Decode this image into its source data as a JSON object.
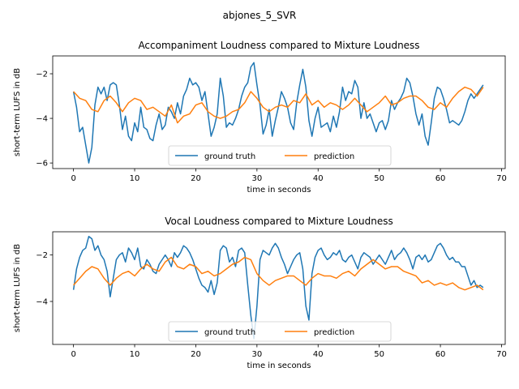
{
  "figure": {
    "suptitle": "abjones_5_SVR"
  },
  "chart_data": [
    {
      "type": "line",
      "title": "Accompaniment Loudness compared to Mixture Loudness",
      "xlabel": "time in seconds",
      "ylabel": "short-term LUFS in dB",
      "xlim": [
        -3.4,
        70.6
      ],
      "ylim": [
        -6.25,
        -1.2
      ],
      "xticks": [
        0,
        10,
        20,
        30,
        40,
        50,
        60,
        70
      ],
      "yticks": [
        -6,
        -4,
        -2
      ],
      "legend": {
        "placement": "lower-center",
        "entries": [
          "ground truth",
          "prediction"
        ]
      },
      "colors": {
        "ground truth": "#1f77b4",
        "prediction": "#ff7f0e"
      },
      "series": [
        {
          "name": "ground truth",
          "x": [
            0,
            0.5,
            1,
            1.5,
            2,
            2.5,
            3,
            3.5,
            4,
            4.5,
            5,
            5.5,
            6,
            6.5,
            7,
            7.5,
            8,
            8.5,
            9,
            9.5,
            10,
            10.5,
            11,
            11.5,
            12,
            12.5,
            13,
            13.5,
            14,
            14.5,
            15,
            15.5,
            16,
            16.5,
            17,
            17.5,
            18,
            18.5,
            19,
            19.5,
            20,
            20.5,
            21,
            21.5,
            22,
            22.5,
            23,
            23.5,
            24,
            24.5,
            25,
            25.5,
            26,
            26.5,
            27,
            27.5,
            28,
            28.5,
            29,
            29.5,
            30,
            30.5,
            31,
            31.5,
            32,
            32.5,
            33,
            33.5,
            34,
            34.5,
            35,
            35.5,
            36,
            36.5,
            37,
            37.5,
            38,
            38.5,
            39,
            39.5,
            40,
            40.5,
            41,
            41.5,
            42,
            42.5,
            43,
            43.5,
            44,
            44.5,
            45,
            45.5,
            46,
            46.5,
            47,
            47.5,
            48,
            48.5,
            49,
            49.5,
            50,
            50.5,
            51,
            51.5,
            52,
            52.5,
            53,
            53.5,
            54,
            54.5,
            55,
            55.5,
            56,
            56.5,
            57,
            57.5,
            58,
            58.5,
            59,
            59.5,
            60,
            60.5,
            61,
            61.5,
            62,
            62.5,
            63,
            63.5,
            64,
            64.5,
            65,
            65.5,
            66,
            66.5,
            67
          ],
          "y": [
            -2.8,
            -3.5,
            -4.6,
            -4.4,
            -5.2,
            -6.0,
            -5.3,
            -3.4,
            -2.6,
            -2.9,
            -2.6,
            -3.2,
            -2.5,
            -2.4,
            -2.5,
            -3.4,
            -4.5,
            -3.9,
            -4.8,
            -5.0,
            -4.2,
            -4.6,
            -3.5,
            -4.4,
            -4.5,
            -4.9,
            -5.0,
            -4.3,
            -3.8,
            -4.5,
            -4.3,
            -3.5,
            -3.7,
            -4.0,
            -3.3,
            -3.8,
            -3.0,
            -2.7,
            -2.2,
            -2.5,
            -2.4,
            -2.6,
            -3.2,
            -2.8,
            -3.8,
            -4.8,
            -4.4,
            -3.8,
            -2.2,
            -3.0,
            -4.4,
            -4.2,
            -4.3,
            -4.0,
            -3.6,
            -3.0,
            -2.6,
            -2.4,
            -1.7,
            -1.5,
            -2.5,
            -3.4,
            -4.7,
            -4.3,
            -3.6,
            -4.8,
            -4.1,
            -3.5,
            -2.8,
            -3.1,
            -3.5,
            -4.2,
            -4.5,
            -3.3,
            -2.5,
            -1.8,
            -2.6,
            -4.1,
            -4.8,
            -4.0,
            -3.5,
            -4.4,
            -4.3,
            -4.2,
            -4.6,
            -3.9,
            -4.4,
            -3.7,
            -2.6,
            -3.2,
            -2.8,
            -2.9,
            -2.3,
            -2.6,
            -4.0,
            -3.3,
            -4.0,
            -3.8,
            -4.2,
            -4.6,
            -4.2,
            -4.1,
            -4.5,
            -4.1,
            -3.2,
            -3.6,
            -3.3,
            -3.1,
            -2.8,
            -2.2,
            -2.4,
            -3.0,
            -3.8,
            -4.3,
            -3.8,
            -4.8,
            -5.2,
            -4.2,
            -3.1,
            -2.6,
            -2.7,
            -3.1,
            -3.6,
            -4.2,
            -4.1,
            -4.2,
            -4.3,
            -4.1,
            -3.7,
            -3.2,
            -2.9,
            -3.1,
            -2.9,
            -2.7,
            -2.5
          ]
        },
        {
          "name": "prediction",
          "x": [
            0,
            1,
            2,
            3,
            4,
            5,
            6,
            7,
            8,
            9,
            10,
            11,
            12,
            13,
            14,
            15,
            16,
            17,
            18,
            19,
            20,
            21,
            22,
            23,
            24,
            25,
            26,
            27,
            28,
            29,
            30,
            31,
            32,
            33,
            34,
            35,
            36,
            37,
            38,
            39,
            40,
            41,
            42,
            43,
            44,
            45,
            46,
            47,
            48,
            49,
            50,
            51,
            52,
            53,
            54,
            55,
            56,
            57,
            58,
            59,
            60,
            61,
            62,
            63,
            64,
            65,
            66,
            67
          ],
          "y": [
            -2.8,
            -3.1,
            -3.2,
            -3.6,
            -3.7,
            -3.2,
            -3.0,
            -3.3,
            -3.7,
            -3.3,
            -3.1,
            -3.2,
            -3.6,
            -3.5,
            -3.7,
            -3.9,
            -3.4,
            -4.2,
            -3.9,
            -3.8,
            -3.4,
            -3.3,
            -3.7,
            -3.9,
            -4.0,
            -3.9,
            -3.7,
            -3.6,
            -3.3,
            -2.8,
            -3.1,
            -3.5,
            -3.7,
            -3.5,
            -3.4,
            -3.5,
            -3.2,
            -3.3,
            -2.9,
            -3.4,
            -3.2,
            -3.5,
            -3.3,
            -3.4,
            -3.6,
            -3.4,
            -3.1,
            -3.4,
            -3.7,
            -3.5,
            -3.3,
            -3.0,
            -3.4,
            -3.3,
            -3.1,
            -3.0,
            -3.0,
            -3.2,
            -3.5,
            -3.6,
            -3.3,
            -3.5,
            -3.1,
            -2.8,
            -2.6,
            -2.7,
            -3.0,
            -2.6
          ]
        }
      ]
    },
    {
      "type": "line",
      "title": "Vocal Loudness compared to Mixture Loudness",
      "xlabel": "time in seconds",
      "ylabel": "short-term LUFS in dB",
      "xlim": [
        -3.4,
        70.6
      ],
      "ylim": [
        -5.85,
        -1.0
      ],
      "xticks": [
        0,
        10,
        20,
        30,
        40,
        50,
        60,
        70
      ],
      "yticks": [
        -4,
        -2
      ],
      "legend": {
        "placement": "lower-center",
        "entries": [
          "ground truth",
          "prediction"
        ]
      },
      "colors": {
        "ground truth": "#1f77b4",
        "prediction": "#ff7f0e"
      },
      "series": [
        {
          "name": "ground truth",
          "x": [
            0,
            0.5,
            1,
            1.5,
            2,
            2.5,
            3,
            3.5,
            4,
            4.5,
            5,
            5.5,
            6,
            6.5,
            7,
            7.5,
            8,
            8.5,
            9,
            9.5,
            10,
            10.5,
            11,
            11.5,
            12,
            12.5,
            13,
            13.5,
            14,
            14.5,
            15,
            15.5,
            16,
            16.5,
            17,
            17.5,
            18,
            18.5,
            19,
            19.5,
            20,
            20.5,
            21,
            21.5,
            22,
            22.5,
            23,
            23.5,
            24,
            24.5,
            25,
            25.5,
            26,
            26.5,
            27,
            27.5,
            28,
            28.5,
            29,
            29.5,
            30,
            30.5,
            31,
            31.5,
            32,
            32.5,
            33,
            33.5,
            34,
            34.5,
            35,
            35.5,
            36,
            36.5,
            37,
            37.5,
            38,
            38.5,
            39,
            39.5,
            40,
            40.5,
            41,
            41.5,
            42,
            42.5,
            43,
            43.5,
            44,
            44.5,
            45,
            45.5,
            46,
            46.5,
            47,
            47.5,
            48,
            48.5,
            49,
            49.5,
            50,
            50.5,
            51,
            51.5,
            52,
            52.5,
            53,
            53.5,
            54,
            54.5,
            55,
            55.5,
            56,
            56.5,
            57,
            57.5,
            58,
            58.5,
            59,
            59.5,
            60,
            60.5,
            61,
            61.5,
            62,
            62.5,
            63,
            63.5,
            64,
            64.5,
            65,
            65.5,
            66,
            66.5,
            67
          ],
          "y": [
            -3.5,
            -2.6,
            -2.1,
            -1.8,
            -1.7,
            -1.2,
            -1.3,
            -1.8,
            -1.6,
            -2.0,
            -2.2,
            -2.7,
            -3.8,
            -3.0,
            -2.2,
            -2.0,
            -1.9,
            -2.3,
            -1.7,
            -1.9,
            -2.2,
            -1.7,
            -2.5,
            -2.6,
            -2.2,
            -2.4,
            -2.7,
            -2.8,
            -2.4,
            -2.2,
            -2.0,
            -2.2,
            -2.5,
            -1.9,
            -2.1,
            -1.9,
            -1.6,
            -1.7,
            -1.9,
            -2.2,
            -2.6,
            -3.0,
            -3.3,
            -3.4,
            -3.6,
            -3.1,
            -3.7,
            -3.2,
            -1.8,
            -1.6,
            -1.7,
            -2.3,
            -2.1,
            -2.5,
            -1.8,
            -1.7,
            -1.9,
            -3.3,
            -4.6,
            -5.6,
            -4.2,
            -2.2,
            -1.8,
            -1.9,
            -2.0,
            -1.7,
            -1.5,
            -1.7,
            -2.1,
            -2.4,
            -2.8,
            -2.5,
            -2.2,
            -2.0,
            -1.9,
            -2.6,
            -4.2,
            -4.8,
            -2.8,
            -2.1,
            -1.8,
            -1.7,
            -2.0,
            -2.2,
            -2.1,
            -1.9,
            -2.0,
            -1.8,
            -2.2,
            -2.3,
            -2.1,
            -2.0,
            -2.3,
            -2.6,
            -2.1,
            -1.9,
            -2.0,
            -2.1,
            -2.4,
            -2.2,
            -2.0,
            -2.2,
            -2.4,
            -2.1,
            -1.8,
            -2.2,
            -2.0,
            -1.9,
            -1.7,
            -1.9,
            -2.2,
            -2.6,
            -2.1,
            -2.0,
            -2.2,
            -2.0,
            -2.3,
            -2.2,
            -1.9,
            -1.6,
            -1.5,
            -1.7,
            -2.0,
            -2.2,
            -2.1,
            -2.3,
            -2.3,
            -2.5,
            -2.5,
            -2.9,
            -3.3,
            -3.1,
            -3.4,
            -3.3,
            -3.4
          ]
        },
        {
          "name": "prediction",
          "x": [
            0,
            1,
            2,
            3,
            4,
            5,
            6,
            7,
            8,
            9,
            10,
            11,
            12,
            13,
            14,
            15,
            16,
            17,
            18,
            19,
            20,
            21,
            22,
            23,
            24,
            25,
            26,
            27,
            28,
            29,
            30,
            31,
            32,
            33,
            34,
            35,
            36,
            37,
            38,
            39,
            40,
            41,
            42,
            43,
            44,
            45,
            46,
            47,
            48,
            49,
            50,
            51,
            52,
            53,
            54,
            55,
            56,
            57,
            58,
            59,
            60,
            61,
            62,
            63,
            64,
            65,
            66,
            67
          ],
          "y": [
            -3.3,
            -3.0,
            -2.7,
            -2.5,
            -2.6,
            -3.0,
            -3.3,
            -3.0,
            -2.8,
            -2.7,
            -2.9,
            -2.6,
            -2.4,
            -2.6,
            -2.7,
            -2.3,
            -2.1,
            -2.5,
            -2.6,
            -2.4,
            -2.5,
            -2.8,
            -2.7,
            -2.9,
            -2.8,
            -2.6,
            -2.4,
            -2.3,
            -2.1,
            -2.2,
            -2.8,
            -3.1,
            -3.3,
            -3.1,
            -3.0,
            -2.9,
            -2.9,
            -3.1,
            -3.3,
            -3.0,
            -2.8,
            -2.9,
            -2.9,
            -3.0,
            -2.8,
            -2.7,
            -2.9,
            -2.6,
            -2.4,
            -2.2,
            -2.4,
            -2.6,
            -2.5,
            -2.5,
            -2.7,
            -2.8,
            -2.9,
            -3.2,
            -3.1,
            -3.3,
            -3.2,
            -3.3,
            -3.2,
            -3.4,
            -3.5,
            -3.4,
            -3.3,
            -3.5
          ]
        }
      ]
    }
  ]
}
